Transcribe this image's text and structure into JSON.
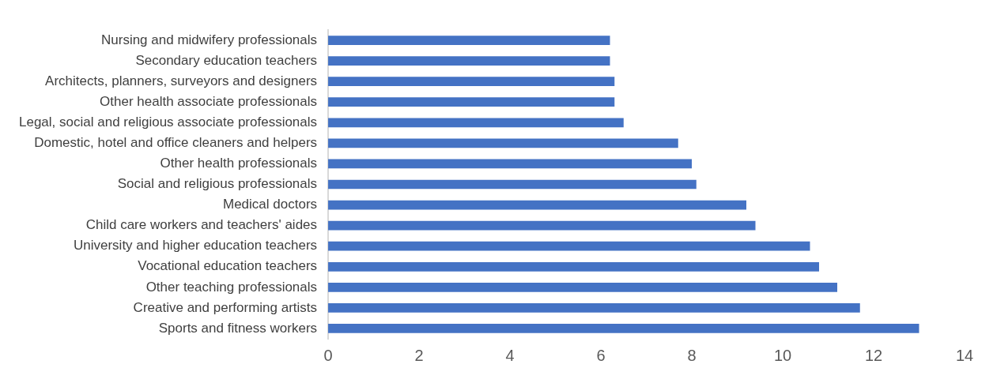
{
  "chart_data": {
    "type": "bar",
    "orientation": "horizontal",
    "categories": [
      "Nursing and midwifery professionals",
      "Secondary education teachers",
      "Architects, planners, surveyors and designers",
      "Other health associate professionals",
      "Legal, social and religious associate professionals",
      "Domestic, hotel and office cleaners and helpers",
      "Other health professionals",
      "Social and religious professionals",
      "Medical doctors",
      "Child care workers and teachers' aides",
      "University and higher education teachers",
      "Vocational education teachers",
      "Other teaching professionals",
      "Creative and performing artists",
      "Sports and fitness workers"
    ],
    "values": [
      6.2,
      6.2,
      6.3,
      6.3,
      6.5,
      7.7,
      8.0,
      8.1,
      9.2,
      9.4,
      10.6,
      10.8,
      11.2,
      11.7,
      13.0
    ],
    "color": "#4472c4",
    "xlim": [
      0,
      14
    ],
    "xticks": [
      0,
      2,
      4,
      6,
      8,
      10,
      12,
      14
    ],
    "grid": false,
    "legend": false
  }
}
